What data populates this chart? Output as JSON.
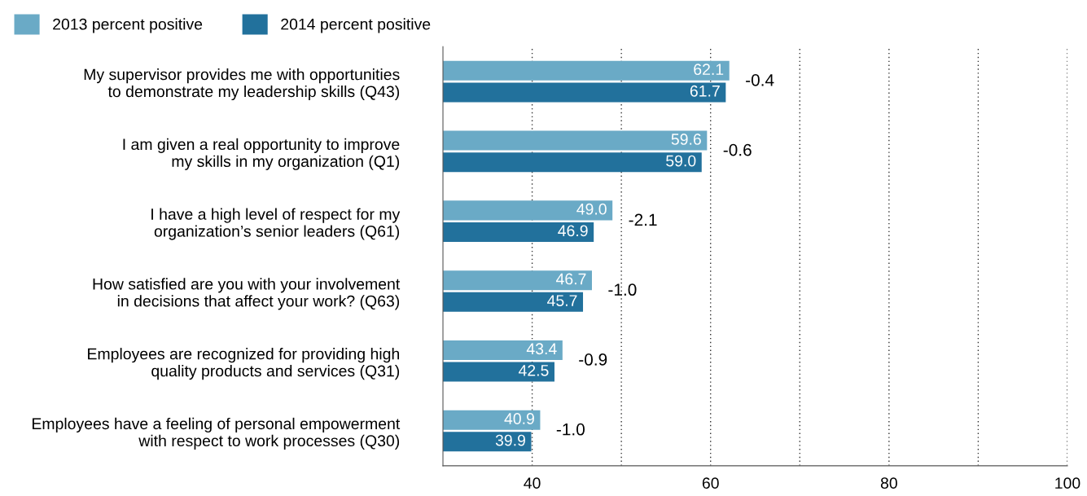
{
  "chart_data": {
    "type": "bar",
    "orientation": "horizontal",
    "categories": [
      "My supervisor provides me with opportunities\nto demonstrate my leadership skills (Q43)",
      "I am given a real opportunity to improve\nmy skills in my organization (Q1)",
      "I have a high level of respect for my\norganization’s senior leaders (Q61)",
      "How satisfied are you with your involvement\nin decisions that affect your work? (Q63)",
      "Employees are recognized for providing high\nquality products and services (Q31)",
      "Employees have a feeling of personal empowerment\nwith respect to work processes (Q30)"
    ],
    "series": [
      {
        "name": "2013 percent positive",
        "color": "#6aaac6",
        "values": [
          62.1,
          59.6,
          49.0,
          46.7,
          43.4,
          40.9
        ],
        "value_labels": [
          "62.1",
          "59.6",
          "49.0",
          "46.7",
          "43.4",
          "40.9"
        ]
      },
      {
        "name": "2014 percent positive",
        "color": "#22719c",
        "values": [
          61.7,
          59.0,
          46.9,
          45.7,
          42.5,
          39.9
        ],
        "value_labels": [
          "61.7",
          "59.0",
          "46.9",
          "45.7",
          "42.5",
          "39.9"
        ]
      }
    ],
    "xlim": [
      30,
      100
    ],
    "xticks": [
      40,
      {
        "value": 50,
        "label": null
      },
      60,
      {
        "value": 70,
        "label": null
      },
      80,
      {
        "value": 90,
        "label": null
      },
      100
    ],
    "grid": "x",
    "legend": "top left",
    "annotations": [
      {
        "text": "-0.4",
        "x": 62.1,
        "y": "My supervisor provides me with opportunities\nto demonstrate my leadership skills (Q43)"
      },
      {
        "text": "-0.6",
        "x": 59.6,
        "y": "I am given a real opportunity to improve\nmy skills in my organization (Q1)"
      },
      {
        "text": "-2.1",
        "x": 49.0,
        "y": "I have a high level of respect for my\norganization’s senior leaders (Q61)"
      },
      {
        "text": "-1.0",
        "x": 46.7,
        "y": "How satisfied are you with your involvement\nin decisions that affect your work? (Q63)"
      },
      {
        "text": "-0.9",
        "x": 43.4,
        "y": "Employees are recognized for providing high\nquality products and services (Q31)"
      },
      {
        "text": "-1.0",
        "x": 40.9,
        "y": "Employees have a feeling of personal empowerment\nwith respect to work processes (Q30)"
      }
    ]
  }
}
